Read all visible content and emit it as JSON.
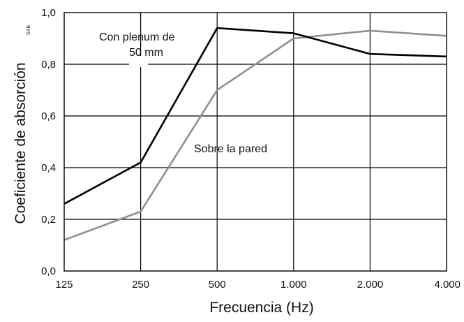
{
  "chart_data": {
    "type": "line",
    "xlabel": "Frecuencia (Hz)",
    "ylabel": "Coeficiente de absorción",
    "ylabel_subscript": "SAB",
    "categories": [
      "125",
      "250",
      "500",
      "1.000",
      "2.000",
      "4.000"
    ],
    "yticks": [
      "0,0",
      "0,2",
      "0,4",
      "0,6",
      "0,8",
      "1,0"
    ],
    "ylim": [
      0,
      1.0
    ],
    "grid": true,
    "series": [
      {
        "name": "Con plenum de 50 mm",
        "color": "#000000",
        "values": [
          0.26,
          0.42,
          0.94,
          0.92,
          0.84,
          0.83
        ]
      },
      {
        "name": "Sobre la pared",
        "color": "#909090",
        "values": [
          0.12,
          0.23,
          0.7,
          0.9,
          0.93,
          0.91
        ]
      }
    ],
    "annotations": [
      {
        "lines": [
          "Con plenum de",
          "50 mm"
        ]
      },
      {
        "lines": [
          "Sobre la pared"
        ]
      }
    ]
  }
}
